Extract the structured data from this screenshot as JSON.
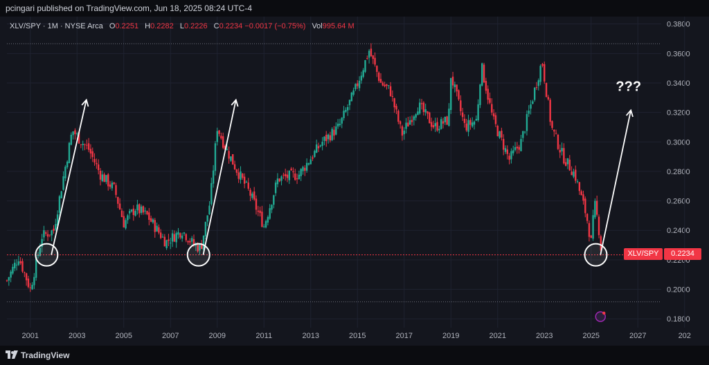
{
  "header": {
    "publish_line": "pcingari published on TradingView.com, Jun 18, 2025 08:24 UTC-4"
  },
  "legend": {
    "symbol": "XLV/SPY · 1M · NYSE Arca",
    "o_label": "O",
    "o_value": "0.2251",
    "h_label": "H",
    "h_value": "0.2282",
    "l_label": "L",
    "l_value": "0.2226",
    "c_label": "C",
    "c_value": "0.2234 −0.0017 (−0.75%)",
    "vol_label": "Vol",
    "vol_value": "995.64 M"
  },
  "price_tag": {
    "symbol": "XLV/SPY",
    "value": "0.2234"
  },
  "annotation": {
    "text": "???"
  },
  "footer": {
    "brand": "TradingView"
  },
  "colors": {
    "up": "#22ab94",
    "down": "#f23645",
    "background": "#14161e",
    "grid": "#1f2230",
    "axis_text": "#b2b5be"
  },
  "chart_data": {
    "type": "candlestick",
    "title": "",
    "x_axis": {
      "ticks": [
        "2001",
        "2003",
        "2005",
        "2007",
        "2009",
        "2011",
        "2013",
        "2015",
        "2017",
        "2019",
        "2021",
        "2023",
        "2025",
        "2027",
        "202"
      ],
      "range": [
        2000.0,
        2028.0
      ]
    },
    "y_axis": {
      "ticks": [
        "0.1800",
        "0.2000",
        "0.2200",
        "0.2400",
        "0.2600",
        "0.2800",
        "0.3000",
        "0.3200",
        "0.3400",
        "0.3600",
        "0.3800"
      ],
      "range": [
        0.174,
        0.385
      ],
      "position": "right"
    },
    "last_price": 0.2234,
    "horizontal_lines": [
      0.3666,
      0.1915
    ],
    "anchors": [
      {
        "x": 2000.0,
        "y": 0.206
      },
      {
        "x": 2000.5,
        "y": 0.222
      },
      {
        "x": 2001.0,
        "y": 0.2
      },
      {
        "x": 2001.5,
        "y": 0.236
      },
      {
        "x": 2002.0,
        "y": 0.24
      },
      {
        "x": 2002.4,
        "y": 0.275
      },
      {
        "x": 2002.8,
        "y": 0.308
      },
      {
        "x": 2003.2,
        "y": 0.3
      },
      {
        "x": 2003.5,
        "y": 0.295
      },
      {
        "x": 2004.0,
        "y": 0.278
      },
      {
        "x": 2004.6,
        "y": 0.268
      },
      {
        "x": 2005.0,
        "y": 0.245
      },
      {
        "x": 2005.5,
        "y": 0.255
      },
      {
        "x": 2006.0,
        "y": 0.25
      },
      {
        "x": 2006.8,
        "y": 0.232
      },
      {
        "x": 2007.5,
        "y": 0.24
      },
      {
        "x": 2008.0,
        "y": 0.23
      },
      {
        "x": 2008.3,
        "y": 0.228
      },
      {
        "x": 2008.7,
        "y": 0.26
      },
      {
        "x": 2009.0,
        "y": 0.31
      },
      {
        "x": 2009.3,
        "y": 0.298
      },
      {
        "x": 2009.8,
        "y": 0.282
      },
      {
        "x": 2010.4,
        "y": 0.265
      },
      {
        "x": 2011.0,
        "y": 0.243
      },
      {
        "x": 2011.6,
        "y": 0.275
      },
      {
        "x": 2012.5,
        "y": 0.278
      },
      {
        "x": 2013.5,
        "y": 0.3
      },
      {
        "x": 2014.2,
        "y": 0.31
      },
      {
        "x": 2014.9,
        "y": 0.335
      },
      {
        "x": 2015.5,
        "y": 0.362
      },
      {
        "x": 2016.0,
        "y": 0.34
      },
      {
        "x": 2016.4,
        "y": 0.335
      },
      {
        "x": 2016.9,
        "y": 0.305
      },
      {
        "x": 2017.6,
        "y": 0.325
      },
      {
        "x": 2018.3,
        "y": 0.31
      },
      {
        "x": 2018.9,
        "y": 0.315
      },
      {
        "x": 2019.0,
        "y": 0.345
      },
      {
        "x": 2019.6,
        "y": 0.31
      },
      {
        "x": 2020.1,
        "y": 0.315
      },
      {
        "x": 2020.3,
        "y": 0.352
      },
      {
        "x": 2020.8,
        "y": 0.315
      },
      {
        "x": 2021.5,
        "y": 0.288
      },
      {
        "x": 2022.0,
        "y": 0.3
      },
      {
        "x": 2022.5,
        "y": 0.33
      },
      {
        "x": 2022.9,
        "y": 0.355
      },
      {
        "x": 2023.3,
        "y": 0.31
      },
      {
        "x": 2023.8,
        "y": 0.29
      },
      {
        "x": 2024.3,
        "y": 0.278
      },
      {
        "x": 2024.8,
        "y": 0.25
      },
      {
        "x": 2025.0,
        "y": 0.232
      },
      {
        "x": 2025.15,
        "y": 0.258
      },
      {
        "x": 2025.3,
        "y": 0.245
      },
      {
        "x": 2025.45,
        "y": 0.2234
      }
    ],
    "circles": [
      {
        "x": 2001.7,
        "y": 0.2234
      },
      {
        "x": 2008.2,
        "y": 0.2234
      },
      {
        "x": 2025.2,
        "y": 0.2234
      }
    ],
    "arrows": [
      {
        "from": [
          2001.9,
          0.2234
        ],
        "to": [
          2003.4,
          0.3285
        ]
      },
      {
        "from": [
          2008.4,
          0.2234
        ],
        "to": [
          2009.8,
          0.3285
        ]
      },
      {
        "from": [
          2025.4,
          0.2234
        ],
        "to": [
          2026.7,
          0.3215
        ]
      }
    ],
    "annotation_pos": {
      "x": 2026.6,
      "y": 0.3345
    }
  }
}
